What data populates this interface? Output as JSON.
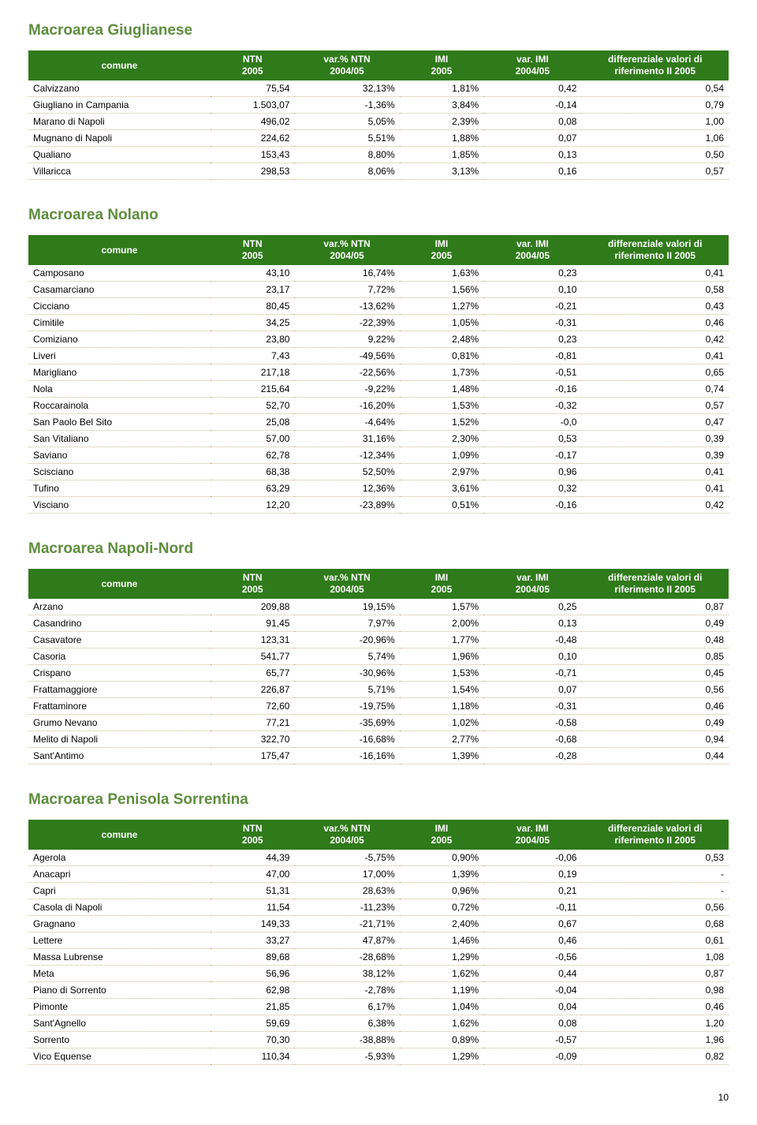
{
  "page_number": "10",
  "columns": [
    {
      "label_top": "comune",
      "label_bot": ""
    },
    {
      "label_top": "NTN",
      "label_bot": "2005"
    },
    {
      "label_top": "var.% NTN",
      "label_bot": "2004/05"
    },
    {
      "label_top": "IMI",
      "label_bot": "2005"
    },
    {
      "label_top": "var. IMI",
      "label_bot": "2004/05"
    },
    {
      "label_top": "differenziale valori di",
      "label_bot": "riferimento  II 2005"
    }
  ],
  "sections": [
    {
      "title": "Macroarea Giuglianese",
      "rows": [
        [
          "Calvizzano",
          "75,54",
          "32,13%",
          "1,81%",
          "0,42",
          "0,54"
        ],
        [
          "Giugliano in Campania",
          "1.503,07",
          "-1,36%",
          "3,84%",
          "-0,14",
          "0,79"
        ],
        [
          "Marano di Napoli",
          "496,02",
          "5,05%",
          "2,39%",
          "0,08",
          "1,00"
        ],
        [
          "Mugnano di Napoli",
          "224,62",
          "5,51%",
          "1,88%",
          "0,07",
          "1,06"
        ],
        [
          "Qualiano",
          "153,43",
          "8,80%",
          "1,85%",
          "0,13",
          "0,50"
        ],
        [
          "Villaricca",
          "298,53",
          "8,06%",
          "3,13%",
          "0,16",
          "0,57"
        ]
      ]
    },
    {
      "title": "Macroarea Nolano",
      "rows": [
        [
          "Camposano",
          "43,10",
          "16,74%",
          "1,63%",
          "0,23",
          "0,41"
        ],
        [
          "Casamarciano",
          "23,17",
          "7,72%",
          "1,56%",
          "0,10",
          "0,58"
        ],
        [
          "Cicciano",
          "80,45",
          "-13,62%",
          "1,27%",
          "-0,21",
          "0,43"
        ],
        [
          "Cimitile",
          "34,25",
          "-22,39%",
          "1,05%",
          "-0,31",
          "0,46"
        ],
        [
          "Comiziano",
          "23,80",
          "9,22%",
          "2,48%",
          "0,23",
          "0,42"
        ],
        [
          "Liveri",
          "7,43",
          "-49,56%",
          "0,81%",
          "-0,81",
          "0,41"
        ],
        [
          "Marigliano",
          "217,18",
          "-22,56%",
          "1,73%",
          "-0,51",
          "0,65"
        ],
        [
          "Nola",
          "215,64",
          "-9,22%",
          "1,48%",
          "-0,16",
          "0,74"
        ],
        [
          "Roccarainola",
          "52,70",
          "-16,20%",
          "1,53%",
          "-0,32",
          "0,57"
        ],
        [
          "San Paolo Bel Sito",
          "25,08",
          "-4,64%",
          "1,52%",
          "-0,0",
          "0,47"
        ],
        [
          "San Vitaliano",
          "57,00",
          "31,16%",
          "2,30%",
          "0,53",
          "0,39"
        ],
        [
          "Saviano",
          "62,78",
          "-12,34%",
          "1,09%",
          "-0,17",
          "0,39"
        ],
        [
          "Scisciano",
          "68,38",
          "52,50%",
          "2,97%",
          "0,96",
          "0,41"
        ],
        [
          "Tufino",
          "63,29",
          "12,36%",
          "3,61%",
          "0,32",
          "0,41"
        ],
        [
          "Visciano",
          "12,20",
          "-23,89%",
          "0,51%",
          "-0,16",
          "0,42"
        ]
      ]
    },
    {
      "title": "Macroarea Napoli-Nord",
      "rows": [
        [
          "Arzano",
          "209,88",
          "19,15%",
          "1,57%",
          "0,25",
          "0,87"
        ],
        [
          "Casandrino",
          "91,45",
          "7,97%",
          "2,00%",
          "0,13",
          "0,49"
        ],
        [
          "Casavatore",
          "123,31",
          "-20,96%",
          "1,77%",
          "-0,48",
          "0,48"
        ],
        [
          "Casoria",
          "541,77",
          "5,74%",
          "1,96%",
          "0,10",
          "0,85"
        ],
        [
          "Crispano",
          "65,77",
          "-30,96%",
          "1,53%",
          "-0,71",
          "0,45"
        ],
        [
          "Frattamaggiore",
          "226,87",
          "5,71%",
          "1,54%",
          "0,07",
          "0,56"
        ],
        [
          "Frattaminore",
          "72,60",
          "-19,75%",
          "1,18%",
          "-0,31",
          "0,46"
        ],
        [
          "Grumo Nevano",
          "77,21",
          "-35,69%",
          "1,02%",
          "-0,58",
          "0,49"
        ],
        [
          "Melito di Napoli",
          "322,70",
          "-16,68%",
          "2,77%",
          "-0,68",
          "0,94"
        ],
        [
          "Sant'Antimo",
          "175,47",
          "-16,16%",
          "1,39%",
          "-0,28",
          "0,44"
        ]
      ]
    },
    {
      "title": "Macroarea Penisola Sorrentina",
      "rows": [
        [
          "Agerola",
          "44,39",
          "-5,75%",
          "0,90%",
          "-0,06",
          "0,53"
        ],
        [
          "Anacapri",
          "47,00",
          "17,00%",
          "1,39%",
          "0,19",
          "-"
        ],
        [
          "Capri",
          "51,31",
          "28,63%",
          "0,96%",
          "0,21",
          "-"
        ],
        [
          "Casola di Napoli",
          "11,54",
          "-11,23%",
          "0,72%",
          "-0,11",
          "0,56"
        ],
        [
          "Gragnano",
          "149,33",
          "-21,71%",
          "2,40%",
          "0,67",
          "0,68"
        ],
        [
          "Lettere",
          "33,27",
          "47,87%",
          "1,46%",
          "0,46",
          "0,61"
        ],
        [
          "Massa Lubrense",
          "89,68",
          "-28,68%",
          "1,29%",
          "-0,56",
          "1,08"
        ],
        [
          "Meta",
          "56,96",
          "38,12%",
          "1,62%",
          "0,44",
          "0,87"
        ],
        [
          "Piano di Sorrento",
          "62,98",
          "-2,78%",
          "1,19%",
          "-0,04",
          "0,98"
        ],
        [
          "Pimonte",
          "21,85",
          "6,17%",
          "1,04%",
          "0,04",
          "0,46"
        ],
        [
          "Sant'Agnello",
          "59,69",
          "6,38%",
          "1,62%",
          "0,08",
          "1,20"
        ],
        [
          "Sorrento",
          "70,30",
          "-38,88%",
          "0,89%",
          "-0,57",
          "1,96"
        ],
        [
          "Vico Equense",
          "110,34",
          "-5,93%",
          "1,29%",
          "-0,09",
          "0,82"
        ]
      ]
    }
  ],
  "style": {
    "header_bg": "#2f7a1a",
    "header_fg": "#ffffff",
    "title_color": "#5f8d3e",
    "row_border": "#c9b98b",
    "col_widths_pct": [
      26,
      12,
      15,
      12,
      14,
      21
    ]
  }
}
